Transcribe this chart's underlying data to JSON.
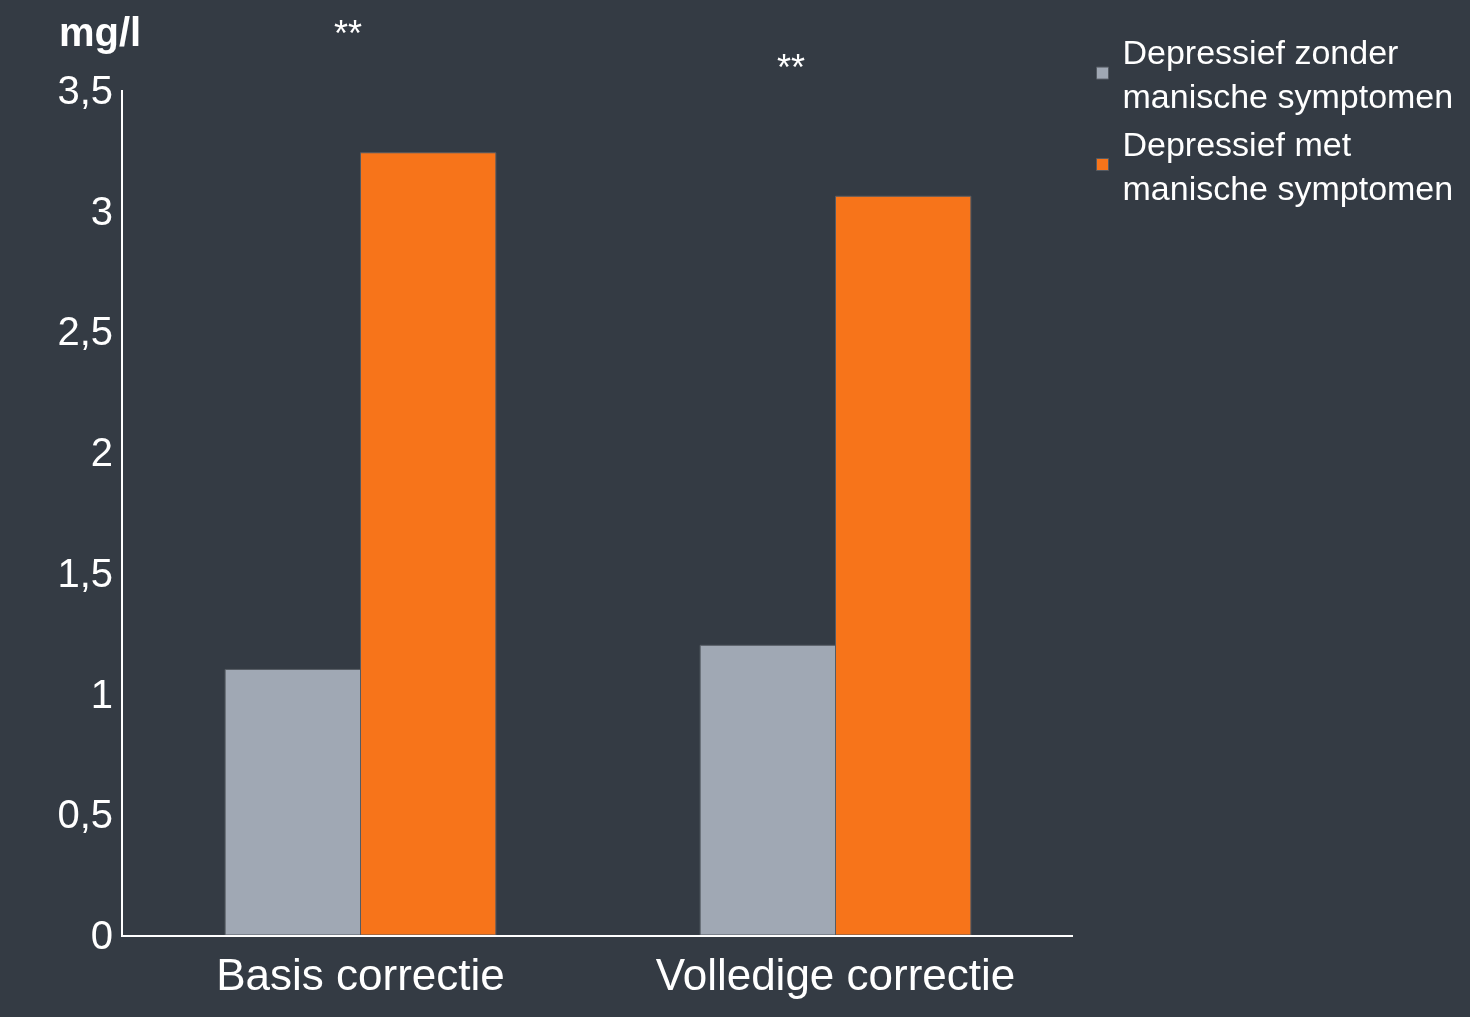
{
  "chart_data": {
    "type": "bar",
    "ylabel": "mg/l",
    "categories": [
      "Basis correctie",
      "Volledige correctie"
    ],
    "series": [
      {
        "name": "Depressief zonder manische symptomen",
        "color": "#a0a8b4",
        "values": [
          1.1,
          1.2
        ]
      },
      {
        "name": "Depressief met manische symptomen",
        "color": "#f7741a",
        "values": [
          3.24,
          3.06
        ]
      }
    ],
    "ylim": [
      0,
      3.5
    ],
    "yticks": [
      0,
      {
        "value": 0.5,
        "label": "0,5"
      },
      1,
      {
        "value": 1.5,
        "label": "1,5"
      },
      2,
      {
        "value": 2.5,
        "label": "2,5"
      },
      3,
      {
        "value": 3.5,
        "label": "3,5"
      }
    ],
    "annotations": [
      "**",
      "**"
    ],
    "legend": "top right",
    "grid": false
  }
}
